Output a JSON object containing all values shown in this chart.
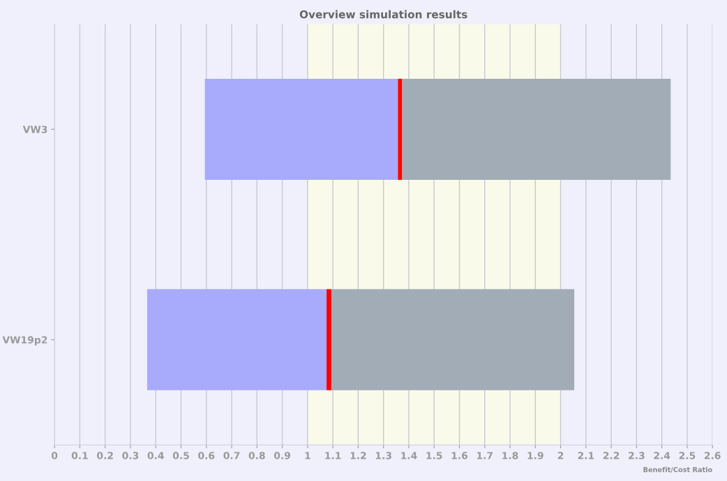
{
  "chart_data": {
    "type": "bar",
    "title": "Overview simulation results",
    "xlabel": "Benefit/Cost Ratio",
    "orientation": "horizontal",
    "categories": [
      "VW3",
      "VW19p2"
    ],
    "series": [
      {
        "color": "#a8abfb",
        "base": [
          0.594,
          0.366
        ],
        "values": [
          0.763,
          0.709
        ]
      },
      {
        "color": "#ff0000",
        "base": [
          1.357,
          1.075
        ],
        "values": [
          0.017,
          0.019
        ]
      },
      {
        "color": "#a2acb6",
        "base": [
          1.374,
          1.094
        ],
        "values": [
          1.061,
          0.96
        ]
      }
    ],
    "xlim": [
      0,
      2.6
    ],
    "xticks": [
      0,
      0.1,
      0.2,
      0.3,
      0.4,
      0.5,
      0.6,
      0.7,
      0.8,
      0.9,
      1,
      1.1,
      1.2,
      1.3,
      1.4,
      1.5,
      1.6,
      1.7,
      1.8,
      1.9,
      2,
      2.1,
      2.2,
      2.3,
      2.4,
      2.5,
      2.6
    ],
    "bands": [
      {
        "axis": "x",
        "from": 1,
        "to": 2,
        "color": "#fafaea"
      }
    ],
    "grid": "x"
  }
}
